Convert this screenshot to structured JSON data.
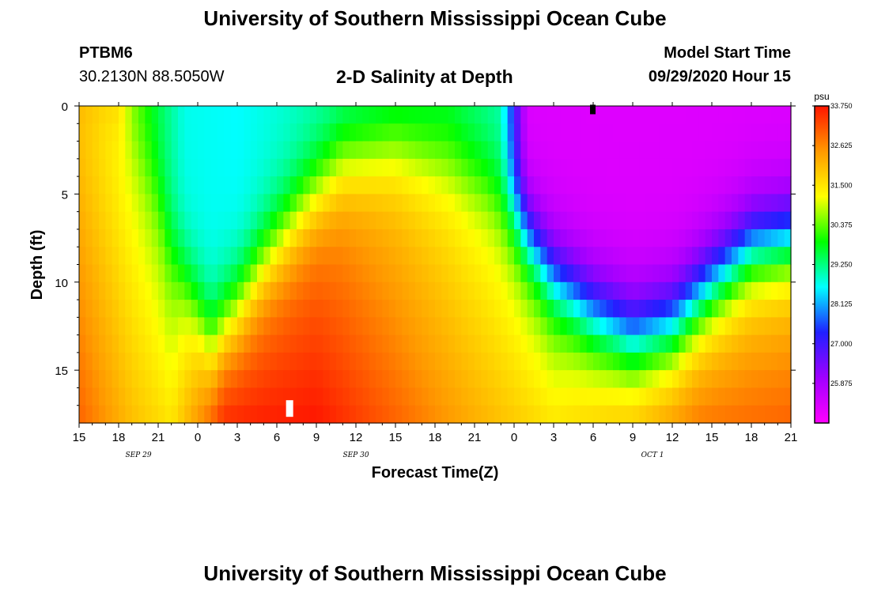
{
  "header": {
    "title": "University of Southern Mississippi Ocean Cube",
    "station": "PTBM6",
    "coords": "30.2130N 88.5050W",
    "subtitle": "2-D Salinity at Depth",
    "model_start_label": "Model Start Time",
    "model_start_value": "09/29/2020 Hour 15"
  },
  "footer": {
    "title": "University of Southern Mississippi Ocean Cube"
  },
  "colors": {
    "scale": [
      "#ff00ff",
      "#a000ff",
      "#2020ff",
      "#00ffff",
      "#00ff00",
      "#ffff00",
      "#ff9900",
      "#ff1500"
    ],
    "marker_top": "#000000",
    "marker_bottom": "#ffffff"
  },
  "chart_data": {
    "type": "heatmap",
    "title": "2-D Salinity at Depth",
    "xlabel": "Forecast Time(Z)",
    "ylabel": "Depth (ft)",
    "x_tick_labels": [
      "15",
      "18",
      "21",
      "0",
      "3",
      "6",
      "9",
      "12",
      "15",
      "18",
      "21",
      "0",
      "3",
      "6",
      "9",
      "12",
      "15",
      "18",
      "21"
    ],
    "date_labels": [
      {
        "label": "SEP 29",
        "hour_index": 4.5
      },
      {
        "label": "SEP 30",
        "hour_index": 21
      },
      {
        "label": "OCT 1",
        "hour_index": 43.5
      }
    ],
    "x_range_hours": [
      0,
      54
    ],
    "ylim": [
      0,
      18
    ],
    "y_ticks": [
      0,
      5,
      10,
      15
    ],
    "colorbar": {
      "unit": "psu",
      "min": 24.75,
      "max": 33.75,
      "labels": [
        "33.750",
        "32.625",
        "31.500",
        "30.375",
        "29.250",
        "28.125",
        "27.000",
        "25.875"
      ]
    },
    "salinity_model": {
      "halocline_depth_ft_by_hour": [
        [
          0,
          0
        ],
        [
          2,
          0
        ],
        [
          4,
          1.0
        ],
        [
          6,
          4.5
        ],
        [
          7,
          7.5
        ],
        [
          9,
          11.0
        ],
        [
          10,
          12.8
        ],
        [
          12,
          11.0
        ],
        [
          14,
          8.5
        ],
        [
          17,
          5.5
        ],
        [
          20,
          3.0
        ],
        [
          24,
          2.2
        ],
        [
          28,
          2.8
        ],
        [
          31,
          4.0
        ],
        [
          33,
          6.0
        ],
        [
          36,
          9.5
        ],
        [
          39,
          11.5
        ],
        [
          42,
          12.8
        ],
        [
          45,
          12.2
        ],
        [
          48,
          10.0
        ],
        [
          51,
          8.0
        ],
        [
          54,
          7.5
        ]
      ],
      "surface_psu_by_hour": [
        [
          0,
          32.3
        ],
        [
          3,
          32.0
        ],
        [
          4,
          30.5
        ],
        [
          6,
          29.5
        ],
        [
          8,
          28.7
        ],
        [
          12,
          28.6
        ],
        [
          17,
          28.9
        ],
        [
          24,
          29.3
        ],
        [
          28,
          29.5
        ],
        [
          32,
          29.0
        ],
        [
          34,
          25.2
        ],
        [
          54,
          25.2
        ]
      ],
      "bottom_psu_by_hour": [
        [
          0,
          33.0
        ],
        [
          4,
          32.0
        ],
        [
          7,
          31.5
        ],
        [
          9,
          32.5
        ],
        [
          11,
          33.6
        ],
        [
          18,
          33.75
        ],
        [
          24,
          33.0
        ],
        [
          30,
          32.2
        ],
        [
          36,
          31.5
        ],
        [
          42,
          32.0
        ],
        [
          47,
          32.8
        ],
        [
          54,
          33.0
        ]
      ]
    },
    "markers": [
      {
        "hour": 39,
        "depth_ft": 0.2,
        "color": "black"
      },
      {
        "hour": 16,
        "depth_ft": 17.2,
        "color": "white"
      }
    ]
  }
}
